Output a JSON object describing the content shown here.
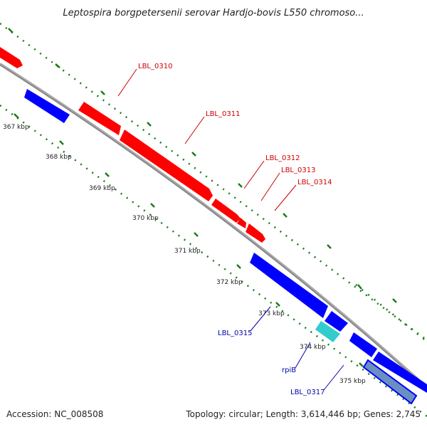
{
  "header": {
    "title": "Leptospira borgpetersenii serovar Hardjo-bovis L550 chromoso..."
  },
  "footer": {
    "accession": "Accession: NC_008508",
    "summary": "Topology: circular; Length: 3,614,446 bp; Genes: 2,745"
  },
  "colors": {
    "forward_strand": "#ff0000",
    "reverse_strand": "#0000ff",
    "rna_feature": "#33cccc",
    "selected_feature": "#6a8fc0",
    "backbone": "#888888",
    "tick_marks": "#1a7a1a",
    "forward_label": "#cc0000",
    "reverse_label": "#0000aa"
  },
  "scale_labels": [
    "367 kbp",
    "368 kbp",
    "369 kbp",
    "370 kbp",
    "371 kbp",
    "372 kbp",
    "373 kbp",
    "374 kbp",
    "375 kbp"
  ],
  "genes": {
    "LBL_0310": "LBL_0310",
    "LBL_0311": "LBL_0311",
    "LBL_0312": "LBL_0312",
    "LBL_0313": "LBL_0313",
    "LBL_0314": "LBL_0314",
    "LBL_0315": "LBL_0315",
    "rpiB": "rpiB",
    "LBL_0317": "LBL_0317"
  }
}
